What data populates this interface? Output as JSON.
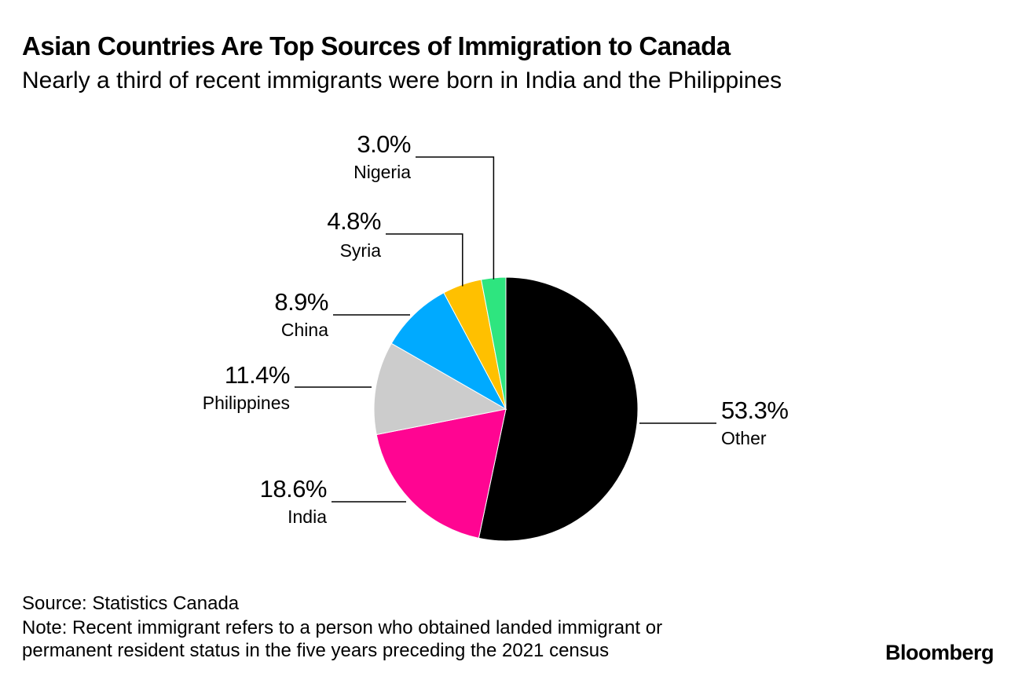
{
  "title": "Asian Countries Are Top Sources of Immigration to Canada",
  "subtitle": "Nearly a third of recent immigrants were born in India and the Philippines",
  "footer": {
    "source": "Source: Statistics Canada",
    "note_line1": "Note: Recent immigrant refers to a person who obtained landed immigrant or",
    "note_line2": "permanent resident status in the five years preceding the 2021 census"
  },
  "brand": "Bloomberg",
  "chart_data": {
    "type": "pie",
    "start": "12 o'clock",
    "direction": "clockwise",
    "slices": [
      {
        "label": "Other",
        "value": 53.3,
        "value_label": "53.3%",
        "color": "#000000"
      },
      {
        "label": "India",
        "value": 18.6,
        "value_label": "18.6%",
        "color": "#ff0592"
      },
      {
        "label": "Philippines",
        "value": 11.4,
        "value_label": "11.4%",
        "color": "#cccccc"
      },
      {
        "label": "China",
        "value": 8.9,
        "value_label": "8.9%",
        "color": "#00aaff"
      },
      {
        "label": "Syria",
        "value": 4.8,
        "value_label": "4.8%",
        "color": "#ffc000"
      },
      {
        "label": "Nigeria",
        "value": 3.0,
        "value_label": "3.0%",
        "color": "#2ee57f"
      }
    ]
  }
}
